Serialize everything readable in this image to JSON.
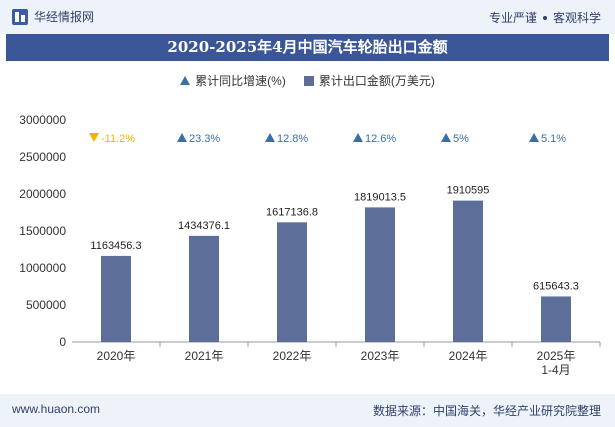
{
  "header": {
    "brand": "华经情报网",
    "slogan_left": "专业严谨",
    "slogan_right": "客观科学"
  },
  "title": "2020-2025年4月中国汽车轮胎出口金额",
  "legend": {
    "growth_label": "累计同比增速(%)",
    "amount_label": "累计出口金额(万美元)"
  },
  "footer": {
    "website": "www.huaon.com",
    "source": "数据来源：中国海关，华经产业研究院整理"
  },
  "colors": {
    "bar": "#5d6f98",
    "up": "#3a6ea5",
    "down": "#f0b400"
  },
  "chart_data": {
    "type": "bar",
    "categories": [
      "2020年",
      "2021年",
      "2022年",
      "2023年",
      "2024年",
      "2025年\n1-4月"
    ],
    "series": [
      {
        "name": "累计出口金额(万美元)",
        "values": [
          1163456.3,
          1434376.1,
          1617136.8,
          1819013.5,
          1910595,
          615643.3
        ]
      },
      {
        "name": "累计同比增速(%)",
        "values": [
          -11.2,
          23.3,
          12.8,
          12.6,
          5,
          5.1
        ]
      }
    ],
    "value_labels": [
      "1163456.3",
      "1434376.1",
      "1617136.8",
      "1819013.5",
      "1910595",
      "615643.3"
    ],
    "pct_labels": [
      "-11.2%",
      "23.3%",
      "12.8%",
      "12.6%",
      "5%",
      "5.1%"
    ],
    "y_ticks": [
      "0",
      "500000",
      "1000000",
      "1500000",
      "2000000",
      "2500000",
      "3000000"
    ],
    "ylim": [
      0,
      3000000
    ],
    "grid": false,
    "legend_position": "top-center"
  }
}
